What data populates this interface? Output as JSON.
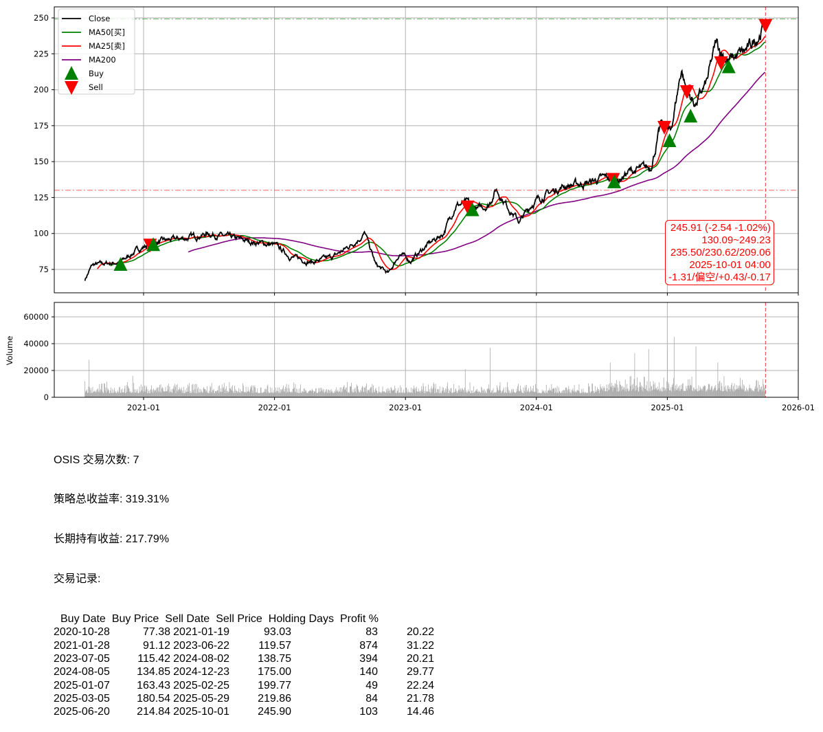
{
  "chart_data": [
    {
      "type": "line",
      "ylim": [
        63,
        258
      ],
      "yticks": [
        75,
        100,
        125,
        150,
        175,
        200,
        225,
        250
      ],
      "xticks": [
        "2021-01",
        "2022-01",
        "2023-01",
        "2024-01",
        "2025-01",
        "2026-01"
      ],
      "grid": true,
      "legend_position": "top-left",
      "legend": [
        "Close",
        "MA50[买]",
        "MA25[卖]",
        "MA200",
        "Buy",
        "Sell"
      ],
      "colors": {
        "Close": "#000000",
        "MA50": "#008000",
        "MA25": "#ff0000",
        "MA200": "#800080",
        "Buy": "#008000",
        "Sell": "#ff0000"
      },
      "close_series": [
        [
          "2020-07-20",
          68
        ],
        [
          "2020-08-10",
          78
        ],
        [
          "2020-09-15",
          79
        ],
        [
          "2020-10-28",
          80
        ],
        [
          "2020-12-10",
          88
        ],
        [
          "2021-01-19",
          93
        ],
        [
          "2021-03-01",
          95
        ],
        [
          "2021-05-01",
          97
        ],
        [
          "2021-07-01",
          100
        ],
        [
          "2021-09-01",
          97
        ],
        [
          "2021-11-01",
          94
        ],
        [
          "2022-01-01",
          92
        ],
        [
          "2022-02-15",
          84
        ],
        [
          "2022-04-15",
          80
        ],
        [
          "2022-06-15",
          84
        ],
        [
          "2022-08-01",
          92
        ],
        [
          "2022-09-10",
          100
        ],
        [
          "2022-10-10",
          78
        ],
        [
          "2022-11-15",
          72
        ],
        [
          "2022-12-15",
          86
        ],
        [
          "2023-01-15",
          81
        ],
        [
          "2023-03-01",
          92
        ],
        [
          "2023-04-15",
          100
        ],
        [
          "2023-05-20",
          120
        ],
        [
          "2023-06-22",
          121
        ],
        [
          "2023-07-20",
          117
        ],
        [
          "2023-08-20",
          120
        ],
        [
          "2023-09-10",
          131
        ],
        [
          "2023-10-15",
          118
        ],
        [
          "2023-11-15",
          108
        ],
        [
          "2023-12-20",
          121
        ],
        [
          "2024-01-20",
          126
        ],
        [
          "2024-03-15",
          133
        ],
        [
          "2024-05-15",
          135
        ],
        [
          "2024-07-15",
          139
        ],
        [
          "2024-08-05",
          135
        ],
        [
          "2024-09-15",
          143
        ],
        [
          "2024-11-15",
          146
        ],
        [
          "2024-12-15",
          176
        ],
        [
          "2025-01-10",
          170
        ],
        [
          "2025-02-10",
          215
        ],
        [
          "2025-02-25",
          198
        ],
        [
          "2025-03-20",
          190
        ],
        [
          "2025-04-20",
          205
        ],
        [
          "2025-05-15",
          232
        ],
        [
          "2025-06-20",
          220
        ],
        [
          "2025-08-15",
          228
        ],
        [
          "2025-10-01",
          246
        ]
      ],
      "hlines": [
        {
          "value": 130.09,
          "color": "#ff0000"
        },
        {
          "value": 249.23,
          "color": "#008000"
        }
      ],
      "vline": {
        "date": "2025-10-01",
        "color": "#ff0000"
      },
      "annotation": [
        "245.91 (-2.54 -1.02%)",
        "130.09~249.23",
        "235.50/230.62/209.06",
        "2025-10-01 04:00",
        "-1.31/偏空/+0.43/-0.17"
      ]
    },
    {
      "type": "bar",
      "ylabel": "Volume",
      "ylim": [
        0,
        70000
      ],
      "yticks": [
        "0",
        "20000",
        "40000",
        "60000"
      ],
      "color": "#aaaaaa",
      "peak_volumes": [
        [
          "2020-08-01",
          28000
        ],
        [
          "2020-12-01",
          16000
        ],
        [
          "2023-06-15",
          21000
        ],
        [
          "2023-08-25",
          37000
        ],
        [
          "2024-07-25",
          26000
        ],
        [
          "2024-10-01",
          33000
        ],
        [
          "2024-11-10",
          36000
        ],
        [
          "2025-01-01",
          36000
        ],
        [
          "2025-01-20",
          45000
        ],
        [
          "2025-03-20",
          38000
        ],
        [
          "2025-05-20",
          26000
        ]
      ]
    }
  ],
  "stats": {
    "line1": "OSIS 交易次数: 7",
    "line2": "策略总收益率: 319.31%",
    "line3": "长期持有收益: 217.79%",
    "line4": "交易记录:",
    "headers": [
      "Buy Date",
      "Buy Price",
      "Sell Date",
      "Sell Price",
      "Holding Days",
      "Profit %"
    ],
    "rows": [
      [
        "2020-10-28",
        "77.38",
        "2021-01-19",
        "93.03",
        "83",
        "20.22"
      ],
      [
        "2021-01-28",
        "91.12",
        "2023-06-22",
        "119.57",
        "874",
        "31.22"
      ],
      [
        "2023-07-05",
        "115.42",
        "2024-08-02",
        "138.75",
        "394",
        "20.21"
      ],
      [
        "2024-08-05",
        "134.85",
        "2024-12-23",
        "175.00",
        "140",
        "29.77"
      ],
      [
        "2025-01-07",
        "163.43",
        "2025-02-25",
        "199.77",
        "49",
        "22.24"
      ],
      [
        "2025-03-05",
        "180.54",
        "2025-05-29",
        "219.86",
        "84",
        "21.78"
      ],
      [
        "2025-06-20",
        "214.84",
        "2025-10-01",
        "245.90",
        "103",
        "14.46"
      ]
    ]
  }
}
